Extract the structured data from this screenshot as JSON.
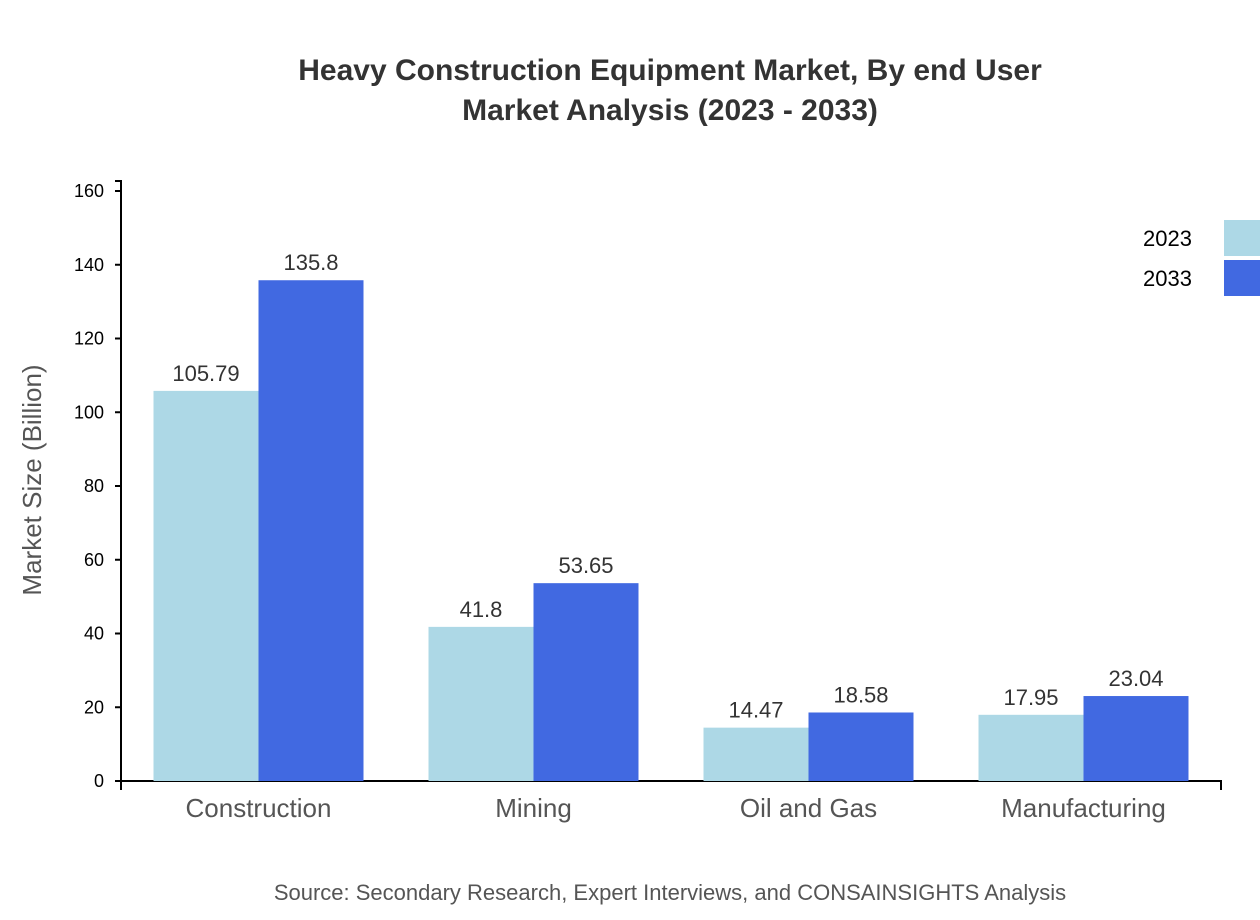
{
  "chart_data": {
    "type": "bar",
    "title": "Heavy Construction Equipment Market, By end User",
    "subtitle": "Market Analysis (2023 - 2033)",
    "xlabel": "",
    "ylabel": "Market Size (Billion)",
    "ylim": [
      0,
      162.7
    ],
    "yticks": [
      0,
      20,
      40,
      60,
      80,
      100,
      120,
      140,
      160
    ],
    "categories": [
      "Construction",
      "Mining",
      "Oil and Gas",
      "Manufacturing"
    ],
    "series": [
      {
        "name": "2023",
        "color": "#add8e6",
        "values": [
          105.79,
          41.8,
          14.47,
          17.95
        ]
      },
      {
        "name": "2033",
        "color": "#4169e1",
        "values": [
          135.8,
          53.65,
          18.58,
          23.04
        ]
      }
    ],
    "legend": "top-right",
    "grid": false,
    "source": "Source: Secondary Research, Expert Interviews, and CONSAINSIGHTS Analysis"
  }
}
